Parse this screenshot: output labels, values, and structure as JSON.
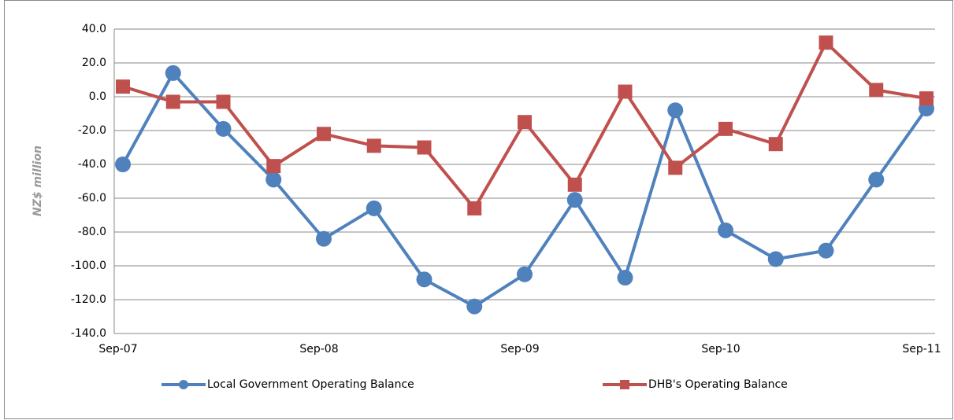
{
  "chart_data": {
    "type": "line",
    "y_label": "NZ$ million",
    "categories": [
      "Sep-07",
      null,
      null,
      null,
      "Sep-08",
      null,
      null,
      null,
      "Sep-09",
      null,
      null,
      null,
      "Sep-10",
      null,
      null,
      null,
      "Sep-11"
    ],
    "series": [
      {
        "name": "Local Government Operating Balance",
        "color": "#4f81bd",
        "marker": "circle",
        "values": [
          -40,
          14,
          -19,
          -49,
          -84,
          -66,
          -108,
          -124,
          -105,
          -61,
          -107,
          -8,
          -79,
          -96,
          -91,
          -49,
          -7
        ]
      },
      {
        "name": "DHB's Operating Balance",
        "color": "#c0504d",
        "marker": "square",
        "values": [
          6,
          -3,
          -3,
          -41,
          -22,
          -29,
          -30,
          -66,
          -15,
          -52,
          3,
          -42,
          -19,
          -28,
          32,
          4,
          -1
        ]
      }
    ],
    "ylim": [
      -140,
      40
    ],
    "yticks": [
      {
        "value": -140,
        "label": "-140.0"
      },
      {
        "value": -120,
        "label": "-120.0"
      },
      {
        "value": -100,
        "label": "-100.0"
      },
      {
        "value": -80,
        "label": "-80.0"
      },
      {
        "value": -60,
        "label": "-60.0"
      },
      {
        "value": -40,
        "label": "-40.0"
      },
      {
        "value": -20,
        "label": "-20.0"
      },
      {
        "value": 0,
        "label": "0.0"
      },
      {
        "value": 20,
        "label": "20.0"
      },
      {
        "value": 40,
        "label": "40.0"
      }
    ],
    "grid": true
  }
}
